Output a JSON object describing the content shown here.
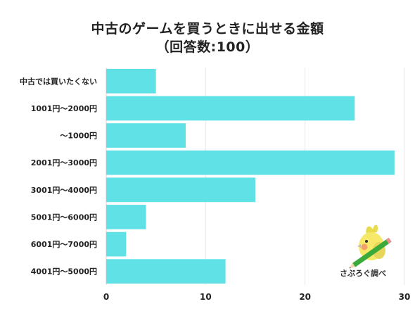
{
  "chart_data": {
    "type": "bar",
    "orientation": "horizontal",
    "title_line1": "中古のゲームを買うときに出せる金額",
    "title_line2": "（回答数:100）",
    "categories": [
      "中古では買いたくない",
      "1001円〜2000円",
      "〜1000円",
      "2001円〜3000円",
      "3001円〜4000円",
      "5001円〜6000円",
      "6001円〜7000円",
      "4001円〜5000円"
    ],
    "values": [
      5,
      25,
      8,
      29,
      15,
      4,
      2,
      12
    ],
    "xlim": [
      0,
      30
    ],
    "xticks": [
      0,
      10,
      20,
      30
    ],
    "grid": true,
    "bar_color": "#5fe1e6"
  },
  "logo": {
    "text": "さぷろぐ調べ",
    "icon": "cockatiel-with-pencil-icon"
  }
}
